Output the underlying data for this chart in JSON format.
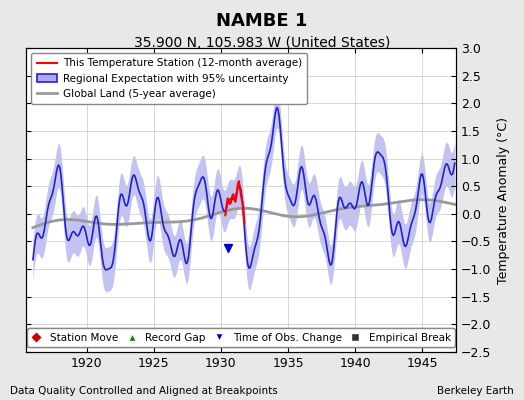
{
  "title": "NAMBE 1",
  "subtitle": "35.900 N, 105.983 W (United States)",
  "ylabel": "Temperature Anomaly (°C)",
  "xlabel_left": "Data Quality Controlled and Aligned at Breakpoints",
  "xlabel_right": "Berkeley Earth",
  "xlim": [
    1915.5,
    1947.5
  ],
  "ylim": [
    -2.5,
    3.0
  ],
  "yticks": [
    -2.5,
    -2,
    -1.5,
    -1,
    -0.5,
    0,
    0.5,
    1,
    1.5,
    2,
    2.5,
    3
  ],
  "xticks": [
    1920,
    1925,
    1930,
    1935,
    1940,
    1945
  ],
  "bg_color": "#e8e8e8",
  "plot_bg_color": "#ffffff",
  "grid_color": "#c8c8c8",
  "legend_items": [
    {
      "label": "This Temperature Station (12-month average)",
      "color": "#ff0000",
      "lw": 1.5
    },
    {
      "label": "Regional Expectation with 95% uncertainty",
      "color": "#4444dd",
      "lw": 1.5
    },
    {
      "label": "Global Land (5-year average)",
      "color": "#aaaaaa",
      "lw": 2.0
    }
  ],
  "bottom_legend": [
    {
      "label": "Station Move",
      "color": "#cc0000",
      "marker": "D"
    },
    {
      "label": "Record Gap",
      "color": "#008800",
      "marker": "^"
    },
    {
      "label": "Time of Obs. Change",
      "color": "#0000cc",
      "marker": "v"
    },
    {
      "label": "Empirical Break",
      "color": "#333333",
      "marker": "s"
    }
  ],
  "regional_color": "#aaaaee",
  "title_fontsize": 13,
  "subtitle_fontsize": 10,
  "tick_fontsize": 9,
  "label_fontsize": 9
}
